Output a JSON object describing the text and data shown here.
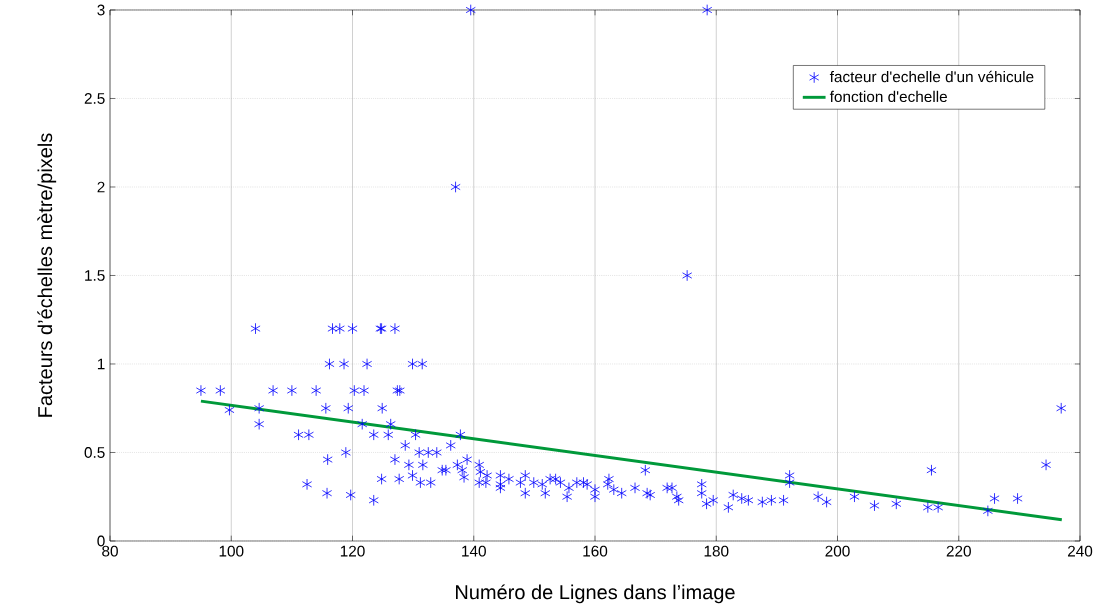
{
  "chart_data": {
    "type": "scatter",
    "xlabel": "Numéro de Lignes dans l’image",
    "ylabel": "Facteurs d’échelles mètre/pixels",
    "xlim": [
      80,
      240
    ],
    "ylim": [
      0,
      3
    ],
    "xticks": [
      80,
      100,
      120,
      140,
      160,
      180,
      200,
      220,
      240
    ],
    "yticks": [
      0,
      0.5,
      1,
      1.5,
      2,
      2.5,
      3
    ],
    "grid": true,
    "legend": "top right",
    "series": [
      {
        "name": "facteur d'echelle d'un véhicule",
        "marker": "cross",
        "color": "#0000ff",
        "x": [
          104,
          116.7,
          117.9,
          120,
          124.6,
          124.8,
          127,
          116.2,
          118.6,
          122.4,
          129.9,
          131.5,
          95,
          98.2,
          106.9,
          110,
          114,
          120.3,
          121.9,
          127.4,
          127.8,
          99.7,
          104.6,
          115.6,
          119.3,
          124.9,
          104.6,
          121.6,
          126.3,
          111.1,
          112.8,
          123.5,
          125.9,
          130.4,
          137.8,
          128.7,
          136.2,
          118.9,
          131,
          132.5,
          133.9,
          115.9,
          127,
          138.9,
          129.3,
          131.6,
          137.3,
          140.9,
          134.8,
          135.4,
          138.1,
          141.1,
          129.9,
          138.4,
          142.2,
          144.4,
          145.8,
          148.5,
          124.8,
          127.7,
          131.2,
          132.9,
          140.9,
          142,
          112.5,
          115.8,
          119.7,
          123.5,
          144.4,
          144.4,
          147.7,
          148.5,
          149.9,
          151.3,
          151.8,
          152.6,
          153.5,
          154.3,
          155.7,
          155.4,
          157,
          158.1,
          158.7,
          160,
          160,
          162.3,
          162.1,
          163.1,
          164.4,
          166.6,
          168.3,
          168.6,
          169.1,
          171.9,
          172.7,
          173.5,
          173.8,
          177.6,
          177.6,
          178.4,
          179.5,
          182,
          182.8,
          184.2,
          185.3,
          187.6,
          189.1,
          191.1,
          192.1,
          192.1,
          196.8,
          198.2,
          202.8,
          206.1,
          209.7,
          215.5,
          214.9,
          216.6,
          224.8,
          225.9,
          229.7,
          234.4,
          236.9,
          139.5,
          178.5,
          137,
          175.2
        ],
        "values": [
          1.2,
          1.2,
          1.2,
          1.2,
          1.2,
          1.2,
          1.2,
          1.0,
          1.0,
          1.0,
          1.0,
          1.0,
          0.85,
          0.85,
          0.85,
          0.85,
          0.85,
          0.85,
          0.85,
          0.85,
          0.85,
          0.74,
          0.75,
          0.75,
          0.75,
          0.75,
          0.66,
          0.66,
          0.66,
          0.6,
          0.6,
          0.6,
          0.6,
          0.6,
          0.6,
          0.54,
          0.54,
          0.5,
          0.5,
          0.5,
          0.5,
          0.46,
          0.46,
          0.46,
          0.43,
          0.43,
          0.43,
          0.43,
          0.4,
          0.4,
          0.4,
          0.39,
          0.37,
          0.36,
          0.37,
          0.37,
          0.35,
          0.37,
          0.35,
          0.35,
          0.33,
          0.33,
          0.33,
          0.33,
          0.32,
          0.27,
          0.26,
          0.23,
          0.32,
          0.3,
          0.33,
          0.27,
          0.33,
          0.32,
          0.27,
          0.35,
          0.35,
          0.33,
          0.3,
          0.25,
          0.33,
          0.33,
          0.32,
          0.29,
          0.25,
          0.35,
          0.32,
          0.29,
          0.27,
          0.3,
          0.4,
          0.27,
          0.26,
          0.3,
          0.3,
          0.25,
          0.23,
          0.32,
          0.27,
          0.21,
          0.23,
          0.19,
          0.26,
          0.24,
          0.23,
          0.22,
          0.23,
          0.23,
          0.37,
          0.33,
          0.25,
          0.22,
          0.25,
          0.2,
          0.21,
          0.4,
          0.19,
          0.19,
          0.17,
          0.24,
          0.24,
          0.43,
          0.75,
          3,
          3,
          2,
          1.5
        ]
      },
      {
        "name": "fonction d'echelle",
        "type": "line",
        "marker": "none",
        "color": "#00993a",
        "x": [
          95,
          237
        ],
        "values": [
          0.79,
          0.12
        ]
      }
    ]
  }
}
